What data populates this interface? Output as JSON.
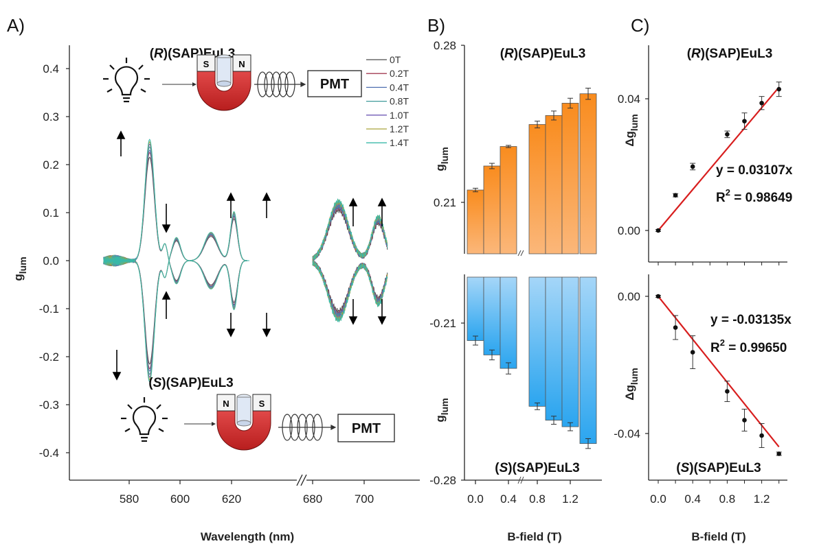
{
  "panels": {
    "a_label": "A)",
    "b_label": "B)",
    "c_label": "C)"
  },
  "text": {
    "title_r_prefix": "(",
    "title_r_mid": "R",
    "title_r_suffix": ")(SAP)EuL3",
    "title_s_prefix": "(",
    "title_s_mid": "S",
    "title_s_suffix": ")(SAP)EuL3",
    "ylabel_main": "g",
    "ylabel_sub": "lum",
    "delta_ylabel_main": "Δg",
    "delta_ylabel_sub": "lum",
    "xlabel_a": "Wavelength (nm)",
    "xlabel_b": "B-field (T)",
    "xlabel_c": "B-field (T)",
    "pmt": "PMT",
    "magnet_s": "S",
    "magnet_n": "N",
    "fit_r": "y = 0.03107x",
    "r2_r_label": "R",
    "r2_r_value": " = 0.98649",
    "fit_s": "y = -0.03135x",
    "r2_s_label": "R",
    "r2_s_value": " = 0.99650",
    "r2_sup": "2"
  },
  "colors": {
    "orange_top": "#f98c1e",
    "orange_bottom": "#fbb77a",
    "blue_top": "#a5d6f8",
    "blue_bottom": "#2ba5ef",
    "fit_line": "#d81e1e"
  },
  "chart_data": [
    {
      "type": "line",
      "xlabel": "Wavelength (nm)",
      "ylabel": "g_lum",
      "ylim": [
        -0.45,
        0.45
      ],
      "yticks": [
        "0.4",
        "0.3",
        "0.2",
        "0.1",
        "0.0",
        "-0.1",
        "-0.2",
        "-0.3",
        "-0.4"
      ],
      "xticks": [
        "580",
        "600",
        "620",
        "680",
        "700"
      ],
      "x_break": "between 627 and 678 nm",
      "legend": [
        "0T",
        "0.2T",
        "0.4T",
        "0.8T",
        "1.0T",
        "1.2T",
        "1.4T"
      ],
      "legend_colors": [
        "#4b4b4b",
        "#a33b52",
        "#4d6fb0",
        "#3f9a9a",
        "#6f59b5",
        "#a9a23a",
        "#39b8a8"
      ],
      "series_peak_amplitude": [
        0.22,
        0.23,
        0.235,
        0.242,
        0.248,
        0.253,
        0.258
      ]
    },
    {
      "type": "bar",
      "title": "(R)(SAP)EuL3",
      "categories": [
        "0.0",
        "0.2",
        "0.4",
        "0.8",
        "1.0",
        "1.2",
        "1.4"
      ],
      "values": [
        0.2155,
        0.2262,
        0.2349,
        0.2447,
        0.2487,
        0.2542,
        0.2584
      ],
      "errors": [
        0.0008,
        0.0012,
        0.0005,
        0.0015,
        0.002,
        0.0022,
        0.0025
      ],
      "ylim": [
        0.195,
        0.28
      ],
      "yticks": [
        "0.28",
        "0.21"
      ]
    },
    {
      "type": "bar",
      "title": "(S)(SAP)EuL3",
      "categories": [
        "0.0",
        "0.2",
        "0.4",
        "0.8",
        "1.0",
        "1.2",
        "1.4"
      ],
      "values": [
        -0.2178,
        -0.2242,
        -0.2302,
        -0.2471,
        -0.2533,
        -0.2562,
        -0.2637
      ],
      "errors": [
        0.002,
        0.0022,
        0.0025,
        0.0015,
        0.0018,
        0.0018,
        0.0022
      ],
      "ylim": [
        -0.28,
        -0.195
      ],
      "yticks": [
        "-0.21",
        "-0.28"
      ],
      "xticks": [
        "0.0",
        "0.4",
        "0.8",
        "1.2"
      ]
    },
    {
      "type": "scatter",
      "title": "(R)(SAP)EuL3",
      "ylabel": "Δg_lum",
      "x": [
        0,
        0.2,
        0.4,
        0.8,
        1.0,
        1.2,
        1.4
      ],
      "y": [
        0.0,
        0.0107,
        0.0194,
        0.0292,
        0.0332,
        0.0387,
        0.0429
      ],
      "errors": [
        0.0003,
        0.0005,
        0.001,
        0.001,
        0.0025,
        0.002,
        0.0022
      ],
      "fit": "y = 0.03107x",
      "r2": "0.98649",
      "ylim": [
        -0.005,
        0.05
      ],
      "yticks": [
        "0.04",
        "0.00"
      ]
    },
    {
      "type": "scatter",
      "title": "(S)(SAP)EuL3",
      "ylabel": "Δg_lum",
      "x": [
        0,
        0.2,
        0.4,
        0.8,
        1.0,
        1.2,
        1.4
      ],
      "y": [
        0.0,
        -0.0091,
        -0.0163,
        -0.0277,
        -0.0361,
        -0.0406,
        -0.0459
      ],
      "errors": [
        0.0003,
        0.0035,
        0.0048,
        0.003,
        0.0032,
        0.0035,
        0.0005
      ],
      "fit": "y = -0.03135x",
      "r2": "0.99650",
      "ylim": [
        -0.05,
        0.005
      ],
      "yticks": [
        "0.00",
        "-0.04"
      ],
      "xticks": [
        "0.0",
        "0.4",
        "0.8",
        "1.2"
      ]
    }
  ]
}
